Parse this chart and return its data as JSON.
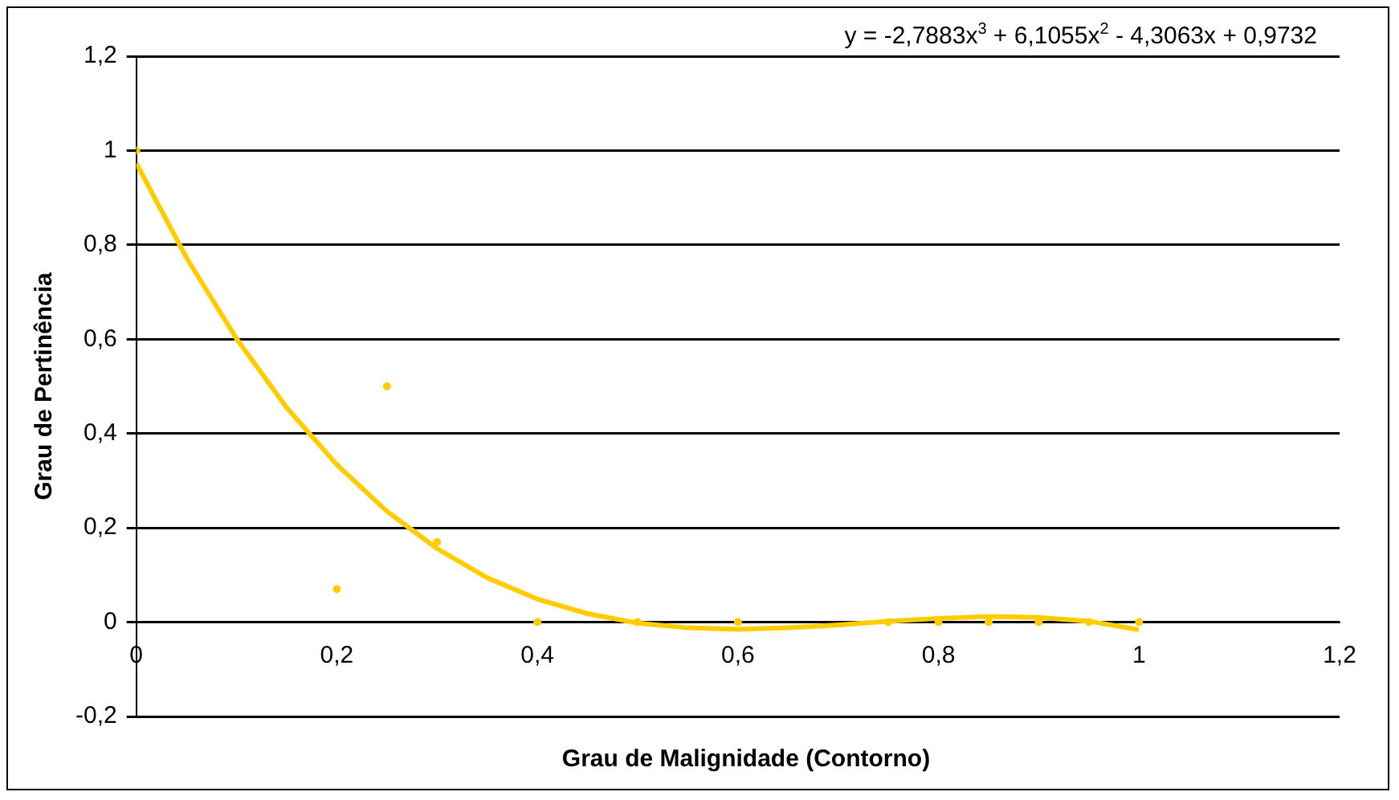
{
  "chart_data": {
    "type": "scatter",
    "xlabel": "Grau de Malignidade (Contorno)",
    "ylabel": "Grau de Pertinência",
    "annotations": [
      "y = -2,7883x$^{3}$ + 6,1055x$^{2}$ - 4,3063x + 0,9732"
    ],
    "series": [
      {
        "type": "scatter",
        "color": "#ffcc00",
        "marker": "circle",
        "x": [
          0,
          0.2,
          0.25,
          0.3,
          0.4,
          0.5,
          0.6,
          0.75,
          0.8,
          0.85,
          0.9,
          0.95,
          1
        ],
        "values": [
          1,
          0.07,
          0.5,
          0.17,
          0,
          0,
          0,
          0,
          0,
          0,
          0,
          0,
          0
        ]
      },
      {
        "type": "line",
        "color": "#ffcc00",
        "marker": "none",
        "x": [
          0,
          0.05,
          0.1,
          0.15,
          0.2,
          0.25,
          0.3,
          0.35,
          0.4,
          0.45,
          0.5,
          0.55,
          0.6,
          0.65,
          0.7,
          0.75,
          0.8,
          0.85,
          0.9,
          0.95,
          1
        ],
        "values": [
          0.973,
          0.773,
          0.601,
          0.455,
          0.334,
          0.235,
          0.156,
          0.094,
          0.049,
          0.018,
          -0.002,
          -0.012,
          -0.015,
          -0.012,
          -0.006,
          0.002,
          0.008,
          0.012,
          0.01,
          0.002,
          -0.016
        ]
      }
    ],
    "xlim": [
      0,
      1.2
    ],
    "xticks": [
      0,
      {
        "value": 0.2,
        "label": "0,2"
      },
      {
        "value": 0.4,
        "label": "0,4"
      },
      {
        "value": 0.6,
        "label": "0,6"
      },
      {
        "value": 0.8,
        "label": "0,8"
      },
      1,
      {
        "value": 1.2,
        "label": "1,2"
      }
    ],
    "ylim": [
      -0.2,
      1.2
    ],
    "yticks": [
      {
        "value": -0.2,
        "label": "-0,2"
      },
      0,
      {
        "value": 0.2,
        "label": "0,2"
      },
      {
        "value": 0.4,
        "label": "0,4"
      },
      {
        "value": 0.6,
        "label": "0,6"
      },
      {
        "value": 0.8,
        "label": "0,8"
      },
      1,
      {
        "value": 1.2,
        "label": "1,2"
      }
    ],
    "grid": "y",
    "legend": false
  }
}
